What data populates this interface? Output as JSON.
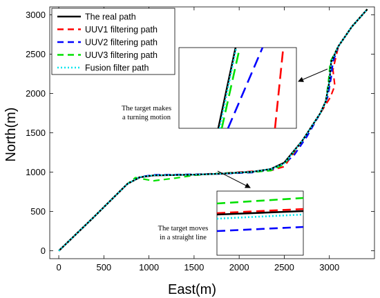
{
  "chart_data": {
    "type": "line",
    "xlabel": "East(m)",
    "ylabel": "North(m)",
    "xlim": [
      -100,
      3500
    ],
    "ylim": [
      -100,
      3100
    ],
    "xticks": [
      0,
      500,
      1000,
      1500,
      2000,
      2500,
      3000
    ],
    "yticks": [
      0,
      500,
      1000,
      1500,
      2000,
      2500,
      3000
    ],
    "grid": false,
    "legend_position": "top-left",
    "series": [
      {
        "name": "The real path",
        "color": "#000000",
        "style": "solid",
        "points": [
          [
            0,
            0
          ],
          [
            380,
            420
          ],
          [
            760,
            850
          ],
          [
            900,
            935
          ],
          [
            1050,
            958
          ],
          [
            1500,
            968
          ],
          [
            1800,
            980
          ],
          [
            2150,
            1005
          ],
          [
            2350,
            1040
          ],
          [
            2500,
            1120
          ],
          [
            2700,
            1400
          ],
          [
            2900,
            1750
          ],
          [
            2960,
            1900
          ],
          [
            3000,
            2150
          ],
          [
            3020,
            2400
          ],
          [
            3100,
            2600
          ],
          [
            3250,
            2850
          ],
          [
            3420,
            3070
          ]
        ]
      },
      {
        "name": "UUV1 filtering path",
        "color": "#ff0000",
        "style": "dashed",
        "points": [
          [
            0,
            0
          ],
          [
            380,
            420
          ],
          [
            760,
            850
          ],
          [
            900,
            940
          ],
          [
            1050,
            962
          ],
          [
            1500,
            970
          ],
          [
            1800,
            985
          ],
          [
            2150,
            1010
          ],
          [
            2350,
            1020
          ],
          [
            2500,
            1070
          ],
          [
            2700,
            1400
          ],
          [
            2900,
            1750
          ],
          [
            3010,
            1950
          ],
          [
            3060,
            2100
          ],
          [
            3040,
            2300
          ],
          [
            3100,
            2600
          ],
          [
            3250,
            2850
          ],
          [
            3420,
            3070
          ]
        ]
      },
      {
        "name": "UUV2 filtering path",
        "color": "#0000ff",
        "style": "dashed",
        "points": [
          [
            0,
            0
          ],
          [
            380,
            420
          ],
          [
            760,
            850
          ],
          [
            900,
            940
          ],
          [
            1050,
            965
          ],
          [
            1500,
            972
          ],
          [
            1800,
            978
          ],
          [
            2150,
            995
          ],
          [
            2400,
            1040
          ],
          [
            2600,
            1200
          ],
          [
            2750,
            1450
          ],
          [
            2900,
            1750
          ],
          [
            2980,
            1950
          ],
          [
            3020,
            2200
          ],
          [
            3040,
            2400
          ],
          [
            3100,
            2600
          ],
          [
            3250,
            2850
          ],
          [
            3420,
            3070
          ]
        ]
      },
      {
        "name": "UUV3 filtering path",
        "color": "#00e000",
        "style": "dashed",
        "points": [
          [
            0,
            0
          ],
          [
            380,
            420
          ],
          [
            760,
            850
          ],
          [
            850,
            930
          ],
          [
            1050,
            890
          ],
          [
            1300,
            925
          ],
          [
            1500,
            960
          ],
          [
            1800,
            985
          ],
          [
            2150,
            1000
          ],
          [
            2350,
            1020
          ],
          [
            2500,
            1100
          ],
          [
            2700,
            1400
          ],
          [
            2900,
            1750
          ],
          [
            2960,
            1900
          ],
          [
            2990,
            2150
          ],
          [
            3010,
            2400
          ],
          [
            3100,
            2600
          ],
          [
            3250,
            2850
          ],
          [
            3420,
            3070
          ]
        ]
      },
      {
        "name": "Fusion filter path",
        "color": "#00e5ee",
        "style": "dotted",
        "points": [
          [
            0,
            0
          ],
          [
            380,
            420
          ],
          [
            760,
            850
          ],
          [
            900,
            938
          ],
          [
            1050,
            960
          ],
          [
            1500,
            968
          ],
          [
            1800,
            980
          ],
          [
            2150,
            1005
          ],
          [
            2350,
            1040
          ],
          [
            2500,
            1110
          ],
          [
            2700,
            1400
          ],
          [
            2900,
            1750
          ],
          [
            2960,
            1900
          ],
          [
            3000,
            2150
          ],
          [
            3020,
            2400
          ],
          [
            3100,
            2600
          ],
          [
            3250,
            2850
          ],
          [
            3420,
            3070
          ]
        ]
      }
    ],
    "annotations": {
      "turning": {
        "lines": [
          "The target makes",
          "a turning motion"
        ]
      },
      "straight": {
        "lines": [
          "The target moves",
          "in a straight line"
        ]
      }
    }
  }
}
